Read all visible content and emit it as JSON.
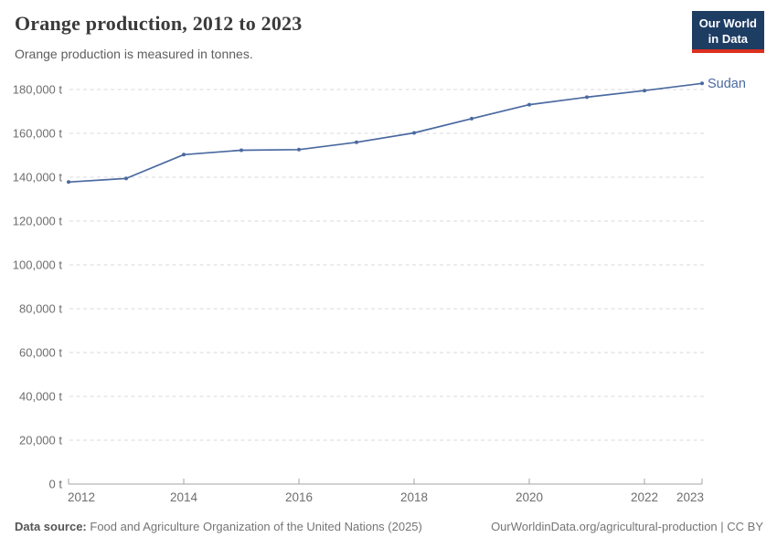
{
  "header": {
    "title": "Orange production, 2012 to 2023",
    "subtitle": "Orange production is measured in tonnes.",
    "logo": {
      "line1": "Our World",
      "line2": "in Data"
    }
  },
  "chart_data": {
    "type": "line",
    "title": "Orange production, 2012 to 2023",
    "unit": "t",
    "x": [
      2012,
      2013,
      2014,
      2015,
      2016,
      2017,
      2018,
      2019,
      2020,
      2021,
      2022,
      2023
    ],
    "series": [
      {
        "name": "Sudan",
        "color": "#4a69a0",
        "values": [
          137800,
          139400,
          150300,
          152300,
          152600,
          155900,
          160200,
          166700,
          173100,
          176500,
          179500,
          182800
        ]
      }
    ],
    "ylim": [
      0,
      180000
    ],
    "ytick_step": 20000,
    "ytick_suffix": " t",
    "xticks": [
      2012,
      2014,
      2016,
      2018,
      2020,
      2022,
      2023
    ],
    "grid": "horizontal-dashed",
    "legend_position": "end-of-line-label"
  },
  "colors": {
    "line": "#4a69a0",
    "grid": "#dadada",
    "axis": "#a3a3a3",
    "tick_text": "#6e6e6e",
    "logo_bg": "#1d3d63",
    "logo_stripe": "#dc2f1f"
  },
  "footer": {
    "source_label": "Data source:",
    "source_text": "Food and Agriculture Organization of the United Nations (2025)",
    "link_text": "OurWorldinData.org/agricultural-production | CC BY"
  }
}
